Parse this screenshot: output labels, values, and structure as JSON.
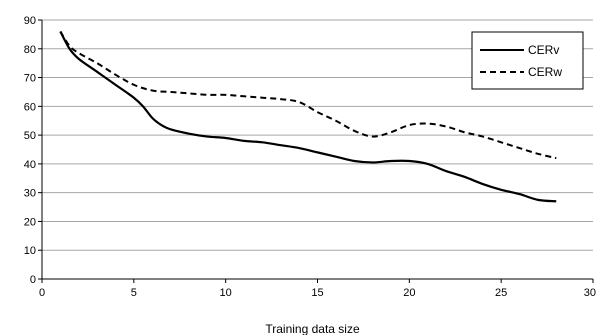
{
  "chart_data": {
    "type": "line",
    "title": "",
    "xlabel": "Training data size",
    "ylabel": "",
    "xlim": [
      0,
      30
    ],
    "ylim": [
      0,
      90
    ],
    "xticks": [
      0,
      5,
      10,
      15,
      20,
      25,
      30
    ],
    "yticks": [
      0,
      10,
      20,
      30,
      40,
      50,
      60,
      70,
      80,
      90
    ],
    "grid": "horizontal",
    "legend_position": "top-right",
    "series": [
      {
        "name": "CERv",
        "style": "solid",
        "color": "#000000",
        "x": [
          1,
          1.5,
          2,
          3,
          4,
          5,
          5.5,
          6,
          6.5,
          7,
          8,
          9,
          10,
          11,
          12,
          13,
          14,
          15,
          16,
          17,
          18,
          19,
          20,
          21,
          22,
          23,
          24,
          25,
          26,
          27,
          28
        ],
        "y": [
          86,
          80,
          76.5,
          72,
          67.5,
          63,
          60,
          56,
          53.5,
          52,
          50.5,
          49.5,
          49,
          48,
          47.5,
          46.5,
          45.5,
          44,
          42.5,
          41,
          40.5,
          41,
          41,
          40,
          37.5,
          35.5,
          33,
          31,
          29.5,
          27.5,
          27
        ]
      },
      {
        "name": "CERw",
        "style": "dashed",
        "color": "#000000",
        "x": [
          1,
          1.5,
          2,
          3,
          4,
          5,
          6,
          7,
          8,
          9,
          10,
          11,
          12,
          13,
          14,
          15,
          16,
          17,
          18,
          19,
          20,
          21,
          22,
          23,
          24,
          25,
          26,
          27,
          28
        ],
        "y": [
          86,
          81,
          78.5,
          75,
          71,
          67.5,
          65.5,
          65,
          64.5,
          64,
          64,
          63.5,
          63,
          62.5,
          61.5,
          58,
          55,
          51.5,
          49.5,
          51,
          53.5,
          54,
          53,
          51,
          49.5,
          47.5,
          45.5,
          43.5,
          42
        ]
      }
    ]
  }
}
